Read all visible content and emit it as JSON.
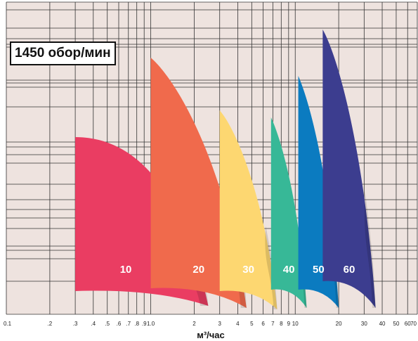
{
  "chart_data": {
    "type": "area",
    "title": "1450 обор/мин",
    "xlabel": "м³/час",
    "ylabel": "",
    "x_scale": "log",
    "xlim": [
      0.1,
      70
    ],
    "grid": true,
    "x_tick_labels": [
      {
        "value": 0.1,
        "label": "0.1"
      },
      {
        "value": 0.2,
        "label": ".2"
      },
      {
        "value": 0.3,
        "label": ".3"
      },
      {
        "value": 0.4,
        "label": ".4"
      },
      {
        "value": 0.5,
        "label": ".5"
      },
      {
        "value": 0.6,
        "label": ".6"
      },
      {
        "value": 0.7,
        "label": ".7"
      },
      {
        "value": 0.8,
        "label": ".8"
      },
      {
        "value": 0.9,
        "label": ".9"
      },
      {
        "value": 1.0,
        "label": "1.0"
      },
      {
        "value": 2,
        "label": "2"
      },
      {
        "value": 3,
        "label": "3"
      },
      {
        "value": 4,
        "label": "4"
      },
      {
        "value": 5,
        "label": "5"
      },
      {
        "value": 6,
        "label": "6"
      },
      {
        "value": 7,
        "label": "7"
      },
      {
        "value": 8,
        "label": "8"
      },
      {
        "value": 9,
        "label": "9"
      },
      {
        "value": 10,
        "label": "10"
      },
      {
        "value": 20,
        "label": "20"
      },
      {
        "value": 30,
        "label": "30"
      },
      {
        "value": 40,
        "label": "40"
      },
      {
        "value": 50,
        "label": "50"
      },
      {
        "value": 60,
        "label": "60"
      },
      {
        "value": 70,
        "label": "70"
      }
    ],
    "series": [
      {
        "name": "10",
        "color": "#ea3d62",
        "q_min": 0.3,
        "q_max": 2.5
      },
      {
        "name": "20",
        "color": "#f06a4c",
        "q_min": 1.0,
        "q_max": 4.6
      },
      {
        "name": "30",
        "color": "#fdd771",
        "q_min": 3.0,
        "q_max": 7.5
      },
      {
        "name": "40",
        "color": "#37b897",
        "q_min": 6.8,
        "q_max": 12
      },
      {
        "name": "50",
        "color": "#0b7bc0",
        "q_min": 10.5,
        "q_max": 20
      },
      {
        "name": "60",
        "color": "#3c3d8f",
        "q_min": 15.5,
        "q_max": 36
      }
    ]
  }
}
